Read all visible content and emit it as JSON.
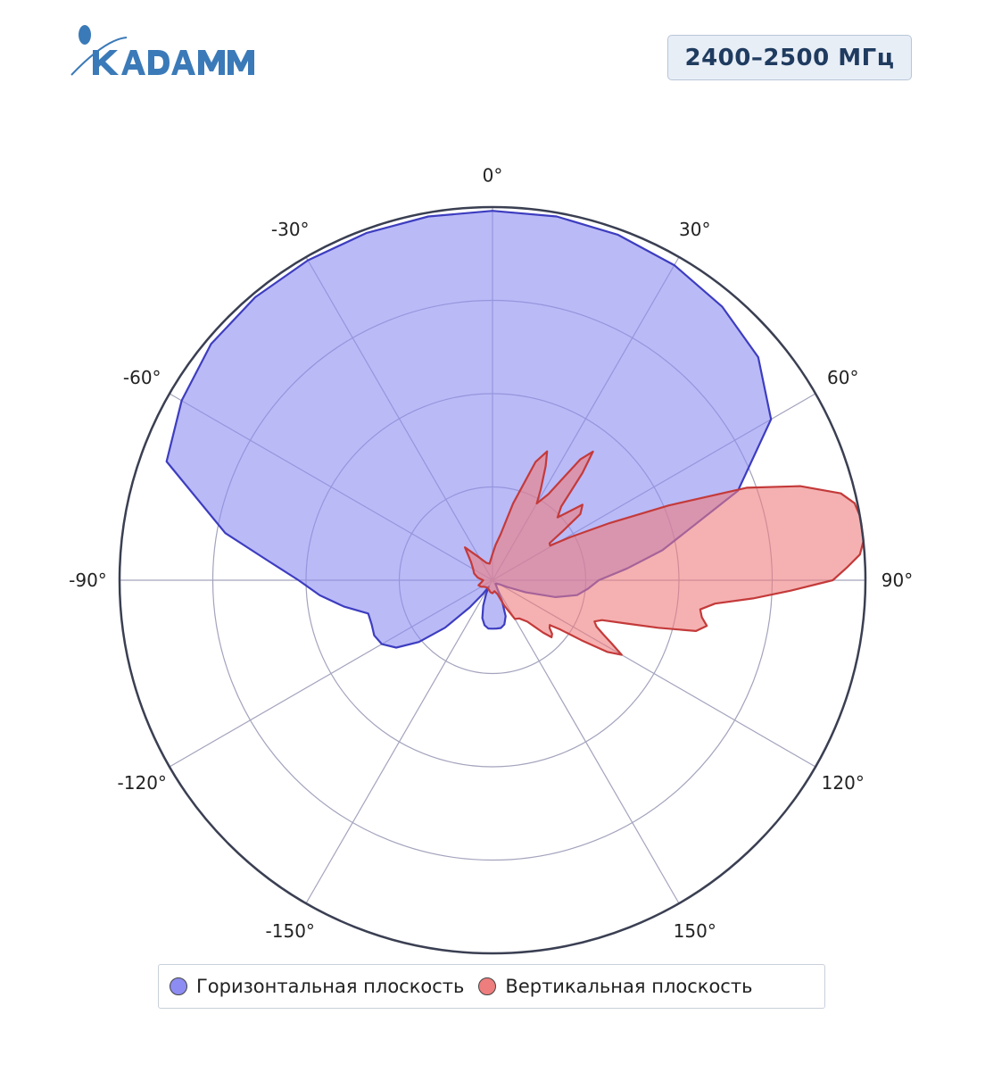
{
  "brand": {
    "name": "KADAMM"
  },
  "badge": {
    "frequency": "2400–2500 МГц"
  },
  "legend": {
    "horizontal": "Горизонтальная плоскость",
    "vertical": "Вертикальная плоскость"
  },
  "colors": {
    "horizontal_fill": "#8c8cf2",
    "horizontal_line": "#3d3dc0",
    "vertical_fill": "#ee7d7d",
    "vertical_line": "#c43a3a",
    "grid": "#a3a3bd",
    "outer_ring": "#3a3f52",
    "logo": "#3b7ab8"
  },
  "chart_data": {
    "type": "polar-area",
    "angular_direction": "clockwise",
    "zero_at": "top",
    "theta_ticks": [
      0,
      30,
      60,
      90,
      120,
      150,
      -150,
      -120,
      -90,
      -60,
      -30
    ],
    "theta_tick_labels": [
      "0°",
      "30°",
      "60°",
      "90°",
      "120°",
      "150°",
      "-150°",
      "-120°",
      "-90°",
      "-60°",
      "-30°"
    ],
    "radial_range": [
      0,
      4
    ],
    "radial_rings": [
      1,
      2,
      3,
      4
    ],
    "series": [
      {
        "name": "Горизонтальная плоскость",
        "theta": [
          0,
          10,
          20,
          30,
          40,
          50,
          60,
          70,
          80,
          85,
          90,
          95,
          100,
          105,
          110,
          115,
          120,
          125,
          130,
          140,
          150,
          155,
          160,
          165,
          170,
          175,
          180,
          185,
          190,
          195,
          200,
          205,
          210,
          215,
          220,
          225,
          230,
          235,
          240,
          245,
          250,
          255,
          260,
          265,
          270,
          275,
          280,
          290,
          300,
          310,
          320,
          330,
          340,
          350
        ],
        "r": [
          3.96,
          3.96,
          3.94,
          3.9,
          3.83,
          3.72,
          3.45,
          2.8,
          1.85,
          1.45,
          1.14,
          1.03,
          0.92,
          0.7,
          0.38,
          0.17,
          0.09,
          0.07,
          0.06,
          0.05,
          0.1,
          0.24,
          0.41,
          0.49,
          0.52,
          0.52,
          0.52,
          0.52,
          0.49,
          0.42,
          0.29,
          0.16,
          0.08,
          0.18,
          0.38,
          0.72,
          1.03,
          1.26,
          1.37,
          1.4,
          1.38,
          1.38,
          1.62,
          1.86,
          2.08,
          2.42,
          2.91,
          3.72,
          3.85,
          3.94,
          3.96,
          3.96,
          3.96,
          3.96
        ]
      },
      {
        "name": "Вертикальная плоскость",
        "theta": [
          0,
          5,
          10,
          15,
          20,
          23,
          25,
          28,
          30,
          33,
          36,
          38,
          40,
          43,
          46,
          50,
          53,
          55,
          57,
          59,
          61,
          64,
          67,
          70,
          73,
          76,
          78,
          80,
          82,
          84,
          86,
          88,
          90,
          92,
          94,
          96,
          98,
          100,
          102,
          104,
          106,
          108,
          110,
          112,
          114,
          116,
          118,
          120,
          122,
          124,
          126,
          128,
          130,
          132,
          134,
          136,
          138,
          140,
          145,
          150,
          155,
          160,
          170,
          180,
          190,
          200,
          210,
          220,
          230,
          240,
          250,
          260,
          270,
          280,
          290,
          300,
          310,
          320,
          330,
          340,
          350
        ],
        "r": [
          0.28,
          0.38,
          0.5,
          0.85,
          1.35,
          1.5,
          1.35,
          1.1,
          0.95,
          1.1,
          1.6,
          1.75,
          1.5,
          1.08,
          0.97,
          1.26,
          1.18,
          0.92,
          0.73,
          0.72,
          0.95,
          1.4,
          2.05,
          2.9,
          3.45,
          3.85,
          3.97,
          4.0,
          4.0,
          4.0,
          3.95,
          3.8,
          3.65,
          3.2,
          2.8,
          2.4,
          2.25,
          2.28,
          2.35,
          2.25,
          1.85,
          1.5,
          1.25,
          1.18,
          1.22,
          1.32,
          1.45,
          1.6,
          1.45,
          1.15,
          0.9,
          0.78,
          0.8,
          0.86,
          0.88,
          0.78,
          0.66,
          0.58,
          0.5,
          0.48,
          0.3,
          0.16,
          0.12,
          0.14,
          0.13,
          0.11,
          0.1,
          0.1,
          0.11,
          0.14,
          0.16,
          0.12,
          0.1,
          0.16,
          0.21,
          0.24,
          0.3,
          0.46,
          0.28,
          0.2,
          0.18
        ]
      }
    ]
  }
}
